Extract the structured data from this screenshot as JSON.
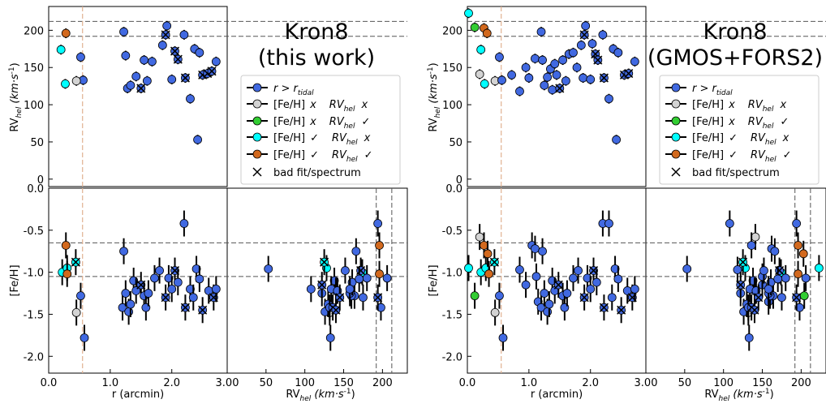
{
  "colors": {
    "blue": "#4169e1",
    "gray": "#d3d3d3",
    "green": "#32cd32",
    "cyan": "#00ffff",
    "orange": "#d2691e",
    "guide_orange": "#e0b090"
  },
  "panels": [
    {
      "title_line1": "Kron8",
      "title_line2": "(this work)",
      "ylabel_top": "RV",
      "ylabel_top_sub": "hel",
      "ylabel_top_units": "(km·s",
      "ylabel_bottom": "[Fe/H]",
      "xlabel_left": "r (arcmin)",
      "xlabel_right": "RV",
      "xlabel_right_sub": "hel",
      "xlabel_right_units": "(km·s"
    },
    {
      "title_line1": "Kron8",
      "title_line2": "(GMOS+FORS2)",
      "ylabel_top": "RV",
      "ylabel_top_sub": "hel",
      "ylabel_top_units": "(km·s",
      "ylabel_bottom": "[Fe/H]",
      "xlabel_left": "r (arcmin)",
      "xlabel_right": "RV",
      "xlabel_right_sub": "hel",
      "xlabel_right_units": "(km·s"
    }
  ],
  "legend": [
    {
      "marker": "blue",
      "label": "r > r_tidal"
    },
    {
      "marker": "gray",
      "label": "[Fe/H] x   RV_hel x"
    },
    {
      "marker": "green",
      "label": "[Fe/H] x   RV_hel ✓"
    },
    {
      "marker": "cyan",
      "label": "[Fe/H] ✓   RV_hel x"
    },
    {
      "marker": "orange",
      "label": "[Fe/H] ✓   RV_hel ✓"
    },
    {
      "marker": "x",
      "label": "bad fit/spectrum"
    }
  ],
  "legend_text": {
    "feh": "[Fe/H]",
    "rv": "RV",
    "rv_sub": "hel",
    "x": "x",
    "check": "✓",
    "r": "r > r",
    "r_sub": "tidal",
    "bad": "bad fit/spectrum"
  },
  "chart_data": [
    {
      "type": "scatter",
      "title": "Kron8 (this work)",
      "axes": {
        "r_range": [
          0,
          2.9
        ],
        "rv_range": [
          -10,
          232
        ],
        "feh_range": [
          -2.2,
          0.0
        ],
        "rv_x_range": [
          0,
          232
        ],
        "r_ticks": [
          "0.0",
          "1.0",
          "2.0"
        ],
        "rv_ticks": [
          "0",
          "50",
          "100",
          "150",
          "200"
        ],
        "feh_ticks": [
          "0.0",
          "-0.5",
          "-1.0",
          "-1.5",
          "-2.0"
        ],
        "rvx_ticks": [
          "3.00",
          "50",
          "100",
          "150",
          "200"
        ]
      },
      "guides": {
        "rv_lines": [
          192,
          212
        ],
        "feh_lines": [
          -0.65,
          -1.05
        ],
        "r_tidal": 0.55
      },
      "rv_points": [
        {
          "r": 1.22,
          "rv": 198,
          "c": "blue"
        },
        {
          "r": 1.25,
          "rv": 166,
          "c": "blue"
        },
        {
          "r": 1.28,
          "rv": 122,
          "c": "blue"
        },
        {
          "r": 1.33,
          "rv": 126,
          "c": "blue"
        },
        {
          "r": 1.42,
          "rv": 138,
          "c": "blue"
        },
        {
          "r": 1.5,
          "rv": 122,
          "c": "blue",
          "x": true
        },
        {
          "r": 1.55,
          "rv": 160,
          "c": "blue"
        },
        {
          "r": 1.6,
          "rv": 132,
          "c": "blue"
        },
        {
          "r": 1.68,
          "rv": 158,
          "c": "blue"
        },
        {
          "r": 1.85,
          "rv": 180,
          "c": "blue"
        },
        {
          "r": 1.92,
          "rv": 206,
          "c": "blue"
        },
        {
          "r": 1.9,
          "rv": 194,
          "c": "blue",
          "x": true
        },
        {
          "r": 2.0,
          "rv": 134,
          "c": "blue"
        },
        {
          "r": 2.05,
          "rv": 172,
          "c": "blue",
          "x": true
        },
        {
          "r": 2.1,
          "rv": 161,
          "c": "blue",
          "x": true
        },
        {
          "r": 2.2,
          "rv": 194,
          "c": "blue"
        },
        {
          "r": 2.22,
          "rv": 136,
          "c": "blue",
          "x": true
        },
        {
          "r": 2.3,
          "rv": 108,
          "c": "blue"
        },
        {
          "r": 2.37,
          "rv": 175,
          "c": "blue"
        },
        {
          "r": 2.42,
          "rv": 53,
          "c": "blue"
        },
        {
          "r": 2.45,
          "rv": 170,
          "c": "blue"
        },
        {
          "r": 2.5,
          "rv": 140,
          "c": "blue",
          "x": true
        },
        {
          "r": 2.58,
          "rv": 142,
          "c": "blue",
          "x": true
        },
        {
          "r": 2.65,
          "rv": 145,
          "c": "blue",
          "x": true
        },
        {
          "r": 2.72,
          "rv": 158,
          "c": "blue"
        },
        {
          "r": 0.52,
          "rv": 164,
          "c": "blue"
        },
        {
          "r": 0.56,
          "rv": 133,
          "c": "blue"
        },
        {
          "r": 0.45,
          "rv": 132,
          "c": "gray"
        },
        {
          "r": 0.2,
          "rv": 174,
          "c": "cyan"
        },
        {
          "r": 0.27,
          "rv": 128,
          "c": "cyan"
        },
        {
          "r": 0.28,
          "rv": 196,
          "c": "orange"
        }
      ],
      "feh_points": [
        {
          "r": 0.22,
          "rv": 174,
          "feh": -1.0,
          "c": "cyan"
        },
        {
          "r": 0.3,
          "rv": 128,
          "feh": -0.95,
          "c": "cyan"
        },
        {
          "r": 0.28,
          "rv": 196,
          "feh": -0.68,
          "c": "orange"
        },
        {
          "r": 0.3,
          "rv": 196,
          "feh": -1.02,
          "c": "orange"
        },
        {
          "r": 0.45,
          "rv": 132,
          "feh": -1.48,
          "c": "gray"
        },
        {
          "r": 0.44,
          "rv": 125,
          "feh": -0.88,
          "c": "cyan",
          "x": true
        },
        {
          "r": 0.52,
          "rv": 164,
          "feh": -1.28,
          "c": "blue"
        },
        {
          "r": 0.58,
          "rv": 133,
          "feh": -1.78,
          "c": "blue"
        },
        {
          "r": 1.2,
          "rv": 198,
          "feh": -1.42,
          "c": "blue"
        },
        {
          "r": 1.22,
          "rv": 166,
          "feh": -0.75,
          "c": "blue"
        },
        {
          "r": 1.25,
          "rv": 122,
          "feh": -1.25,
          "c": "blue"
        },
        {
          "r": 1.3,
          "rv": 126,
          "feh": -1.47,
          "c": "blue"
        },
        {
          "r": 1.33,
          "rv": 130,
          "feh": -1.38,
          "c": "blue"
        },
        {
          "r": 1.38,
          "rv": 138,
          "feh": -1.1,
          "c": "blue"
        },
        {
          "r": 1.42,
          "rv": 140,
          "feh": -1.22,
          "c": "blue"
        },
        {
          "r": 1.5,
          "rv": 122,
          "feh": -1.15,
          "c": "blue",
          "x": true
        },
        {
          "r": 1.55,
          "rv": 160,
          "feh": -1.28,
          "c": "blue"
        },
        {
          "r": 1.58,
          "rv": 132,
          "feh": -1.42,
          "c": "blue"
        },
        {
          "r": 1.62,
          "rv": 158,
          "feh": -1.25,
          "c": "blue"
        },
        {
          "r": 1.72,
          "rv": 180,
          "feh": -1.07,
          "c": "blue"
        },
        {
          "r": 1.8,
          "rv": 152,
          "feh": -0.98,
          "c": "blue"
        },
        {
          "r": 1.9,
          "rv": 194,
          "feh": -1.3,
          "c": "blue",
          "x": true
        },
        {
          "r": 1.95,
          "rv": 206,
          "feh": -1.07,
          "c": "blue"
        },
        {
          "r": 2.0,
          "rv": 134,
          "feh": -1.2,
          "c": "blue"
        },
        {
          "r": 2.05,
          "rv": 172,
          "feh": -0.98,
          "c": "blue",
          "x": true
        },
        {
          "r": 2.1,
          "rv": 161,
          "feh": -1.12,
          "c": "blue"
        },
        {
          "r": 2.2,
          "rv": 194,
          "feh": -0.42,
          "c": "blue"
        },
        {
          "r": 2.22,
          "rv": 136,
          "feh": -1.42,
          "c": "blue",
          "x": true
        },
        {
          "r": 2.3,
          "rv": 108,
          "feh": -1.2,
          "c": "blue"
        },
        {
          "r": 2.35,
          "rv": 175,
          "feh": -1.3,
          "c": "blue"
        },
        {
          "r": 2.4,
          "rv": 53,
          "feh": -0.96,
          "c": "blue"
        },
        {
          "r": 2.45,
          "rv": 170,
          "feh": -1.08,
          "c": "blue"
        },
        {
          "r": 2.5,
          "rv": 140,
          "feh": -1.45,
          "c": "blue",
          "x": true
        },
        {
          "r": 2.6,
          "rv": 142,
          "feh": -1.22,
          "c": "blue"
        },
        {
          "r": 2.68,
          "rv": 145,
          "feh": -1.3,
          "c": "blue",
          "x": true
        },
        {
          "r": 2.72,
          "rv": 158,
          "feh": -1.2,
          "c": "blue"
        }
      ]
    },
    {
      "type": "scatter",
      "title": "Kron8 (GMOS+FORS2)",
      "axes": {
        "r_range": [
          0,
          2.9
        ],
        "rv_range": [
          -10,
          232
        ],
        "feh_range": [
          -2.2,
          0.0
        ],
        "rv_x_range": [
          0,
          232
        ],
        "r_ticks": [
          "0.0",
          "1.0",
          "2.0"
        ],
        "rv_ticks": [
          "0",
          "50",
          "100",
          "150",
          "200"
        ],
        "feh_ticks": [
          "0.0",
          "-0.5",
          "-1.0",
          "-1.5",
          "-2.0"
        ],
        "rvx_ticks": [
          "3.00",
          "50",
          "100",
          "150",
          "200"
        ]
      },
      "guides": {
        "rv_lines": [
          192,
          212
        ],
        "feh_lines": [
          -0.65,
          -1.05
        ],
        "r_tidal": 0.55
      },
      "rv_points": [
        {
          "r": 0.02,
          "rv": 223,
          "c": "cyan"
        },
        {
          "r": 0.12,
          "rv": 204,
          "c": "green"
        },
        {
          "r": 0.2,
          "rv": 141,
          "c": "gray"
        },
        {
          "r": 0.22,
          "rv": 174,
          "c": "cyan"
        },
        {
          "r": 0.28,
          "rv": 128,
          "c": "cyan"
        },
        {
          "r": 0.27,
          "rv": 203,
          "c": "orange"
        },
        {
          "r": 0.32,
          "rv": 196,
          "c": "orange"
        },
        {
          "r": 0.45,
          "rv": 132,
          "c": "gray"
        },
        {
          "r": 0.52,
          "rv": 164,
          "c": "blue"
        },
        {
          "r": 0.56,
          "rv": 133,
          "c": "blue"
        },
        {
          "r": 0.72,
          "rv": 140,
          "c": "blue"
        },
        {
          "r": 0.85,
          "rv": 118,
          "c": "blue"
        },
        {
          "r": 0.95,
          "rv": 150,
          "c": "blue"
        },
        {
          "r": 1.0,
          "rv": 136,
          "c": "blue"
        },
        {
          "r": 1.1,
          "rv": 162,
          "c": "blue"
        },
        {
          "r": 1.2,
          "rv": 198,
          "c": "blue"
        },
        {
          "r": 1.22,
          "rv": 160,
          "c": "blue"
        },
        {
          "r": 1.25,
          "rv": 126,
          "c": "blue"
        },
        {
          "r": 1.3,
          "rv": 137,
          "c": "blue"
        },
        {
          "r": 1.35,
          "rv": 148,
          "c": "blue"
        },
        {
          "r": 1.38,
          "rv": 120,
          "c": "blue"
        },
        {
          "r": 1.42,
          "rv": 155,
          "c": "blue"
        },
        {
          "r": 1.45,
          "rv": 140,
          "c": "blue"
        },
        {
          "r": 1.5,
          "rv": 122,
          "c": "blue",
          "x": true
        },
        {
          "r": 1.55,
          "rv": 160,
          "c": "blue"
        },
        {
          "r": 1.6,
          "rv": 132,
          "c": "blue"
        },
        {
          "r": 1.65,
          "rv": 168,
          "c": "blue"
        },
        {
          "r": 1.72,
          "rv": 170,
          "c": "blue"
        },
        {
          "r": 1.78,
          "rv": 150,
          "c": "blue"
        },
        {
          "r": 1.85,
          "rv": 180,
          "c": "blue"
        },
        {
          "r": 1.88,
          "rv": 136,
          "c": "blue"
        },
        {
          "r": 1.92,
          "rv": 206,
          "c": "blue"
        },
        {
          "r": 1.9,
          "rv": 194,
          "c": "blue",
          "x": true
        },
        {
          "r": 2.0,
          "rv": 134,
          "c": "blue"
        },
        {
          "r": 2.03,
          "rv": 182,
          "c": "blue"
        },
        {
          "r": 2.08,
          "rv": 168,
          "c": "blue",
          "x": true
        },
        {
          "r": 2.12,
          "rv": 160,
          "c": "blue",
          "x": true
        },
        {
          "r": 2.2,
          "rv": 194,
          "c": "blue"
        },
        {
          "r": 2.22,
          "rv": 136,
          "c": "blue",
          "x": true
        },
        {
          "r": 2.3,
          "rv": 108,
          "c": "blue"
        },
        {
          "r": 2.37,
          "rv": 175,
          "c": "blue"
        },
        {
          "r": 2.42,
          "rv": 53,
          "c": "blue"
        },
        {
          "r": 2.45,
          "rv": 170,
          "c": "blue"
        },
        {
          "r": 2.55,
          "rv": 140,
          "c": "blue",
          "x": true
        },
        {
          "r": 2.62,
          "rv": 142,
          "c": "blue",
          "x": true
        },
        {
          "r": 2.72,
          "rv": 158,
          "c": "blue"
        }
      ],
      "feh_points": [
        {
          "r": 0.02,
          "rv": 223,
          "feh": -0.95,
          "c": "cyan"
        },
        {
          "r": 0.12,
          "rv": 204,
          "feh": -1.28,
          "c": "green"
        },
        {
          "r": 0.2,
          "rv": 141,
          "feh": -0.58,
          "c": "gray"
        },
        {
          "r": 0.22,
          "rv": 174,
          "feh": -1.0,
          "c": "cyan"
        },
        {
          "r": 0.27,
          "rv": 196,
          "feh": -0.68,
          "c": "orange"
        },
        {
          "r": 0.3,
          "rv": 128,
          "feh": -0.95,
          "c": "cyan"
        },
        {
          "r": 0.33,
          "rv": 203,
          "feh": -0.78,
          "c": "orange"
        },
        {
          "r": 0.35,
          "rv": 196,
          "feh": -1.02,
          "c": "orange"
        },
        {
          "r": 0.45,
          "rv": 132,
          "feh": -1.48,
          "c": "gray"
        },
        {
          "r": 0.44,
          "rv": 125,
          "feh": -0.88,
          "c": "cyan",
          "x": true
        },
        {
          "r": 0.52,
          "rv": 164,
          "feh": -1.28,
          "c": "blue"
        },
        {
          "r": 0.58,
          "rv": 133,
          "feh": -1.78,
          "c": "blue"
        },
        {
          "r": 0.85,
          "rv": 118,
          "feh": -0.97,
          "c": "blue"
        },
        {
          "r": 0.95,
          "rv": 150,
          "feh": -1.15,
          "c": "blue"
        },
        {
          "r": 1.05,
          "rv": 136,
          "feh": -0.68,
          "c": "blue"
        },
        {
          "r": 1.1,
          "rv": 162,
          "feh": -0.72,
          "c": "blue"
        },
        {
          "r": 1.12,
          "rv": 150,
          "feh": -1.05,
          "c": "blue"
        },
        {
          "r": 1.15,
          "rv": 158,
          "feh": -1.35,
          "c": "blue"
        },
        {
          "r": 1.2,
          "rv": 198,
          "feh": -1.42,
          "c": "blue"
        },
        {
          "r": 1.22,
          "rv": 166,
          "feh": -0.75,
          "c": "blue"
        },
        {
          "r": 1.25,
          "rv": 122,
          "feh": -1.25,
          "c": "blue"
        },
        {
          "r": 1.3,
          "rv": 126,
          "feh": -1.47,
          "c": "blue"
        },
        {
          "r": 1.33,
          "rv": 130,
          "feh": -1.38,
          "c": "blue"
        },
        {
          "r": 1.38,
          "rv": 138,
          "feh": -1.1,
          "c": "blue"
        },
        {
          "r": 1.42,
          "rv": 140,
          "feh": -1.22,
          "c": "blue"
        },
        {
          "r": 1.48,
          "rv": 122,
          "feh": -1.15,
          "c": "blue",
          "x": true
        },
        {
          "r": 1.55,
          "rv": 160,
          "feh": -1.28,
          "c": "blue"
        },
        {
          "r": 1.58,
          "rv": 132,
          "feh": -1.42,
          "c": "blue"
        },
        {
          "r": 1.62,
          "rv": 158,
          "feh": -1.25,
          "c": "blue"
        },
        {
          "r": 1.72,
          "rv": 180,
          "feh": -1.07,
          "c": "blue"
        },
        {
          "r": 1.8,
          "rv": 152,
          "feh": -0.98,
          "c": "blue"
        },
        {
          "r": 1.9,
          "rv": 194,
          "feh": -1.3,
          "c": "blue",
          "x": true
        },
        {
          "r": 1.95,
          "rv": 206,
          "feh": -1.07,
          "c": "blue"
        },
        {
          "r": 2.0,
          "rv": 134,
          "feh": -1.2,
          "c": "blue"
        },
        {
          "r": 2.05,
          "rv": 172,
          "feh": -0.98,
          "c": "blue",
          "x": true
        },
        {
          "r": 2.1,
          "rv": 161,
          "feh": -1.12,
          "c": "blue"
        },
        {
          "r": 2.2,
          "rv": 194,
          "feh": -0.42,
          "c": "blue"
        },
        {
          "r": 2.22,
          "rv": 136,
          "feh": -1.42,
          "c": "blue",
          "x": true
        },
        {
          "r": 2.3,
          "rv": 108,
          "feh": -0.42,
          "c": "blue"
        },
        {
          "r": 2.35,
          "rv": 175,
          "feh": -1.3,
          "c": "blue"
        },
        {
          "r": 2.4,
          "rv": 53,
          "feh": -0.96,
          "c": "blue"
        },
        {
          "r": 2.45,
          "rv": 170,
          "feh": -1.08,
          "c": "blue"
        },
        {
          "r": 2.5,
          "rv": 140,
          "feh": -1.45,
          "c": "blue",
          "x": true
        },
        {
          "r": 2.6,
          "rv": 142,
          "feh": -1.22,
          "c": "blue"
        },
        {
          "r": 2.68,
          "rv": 145,
          "feh": -1.3,
          "c": "blue",
          "x": true
        },
        {
          "r": 2.72,
          "rv": 158,
          "feh": -1.2,
          "c": "blue"
        }
      ]
    }
  ]
}
